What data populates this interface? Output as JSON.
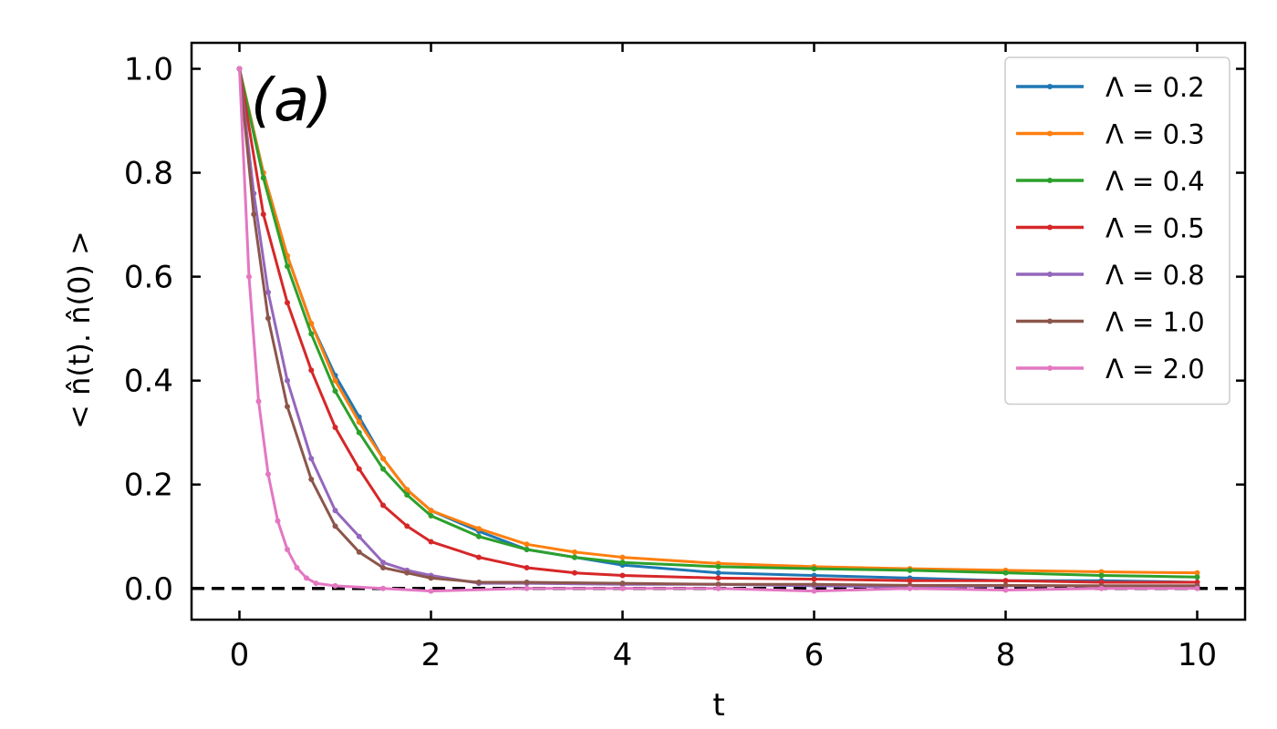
{
  "chart_data": {
    "type": "line",
    "panel_label": "(a)",
    "xlabel": "t",
    "ylabel": "< n̂(t). n̂(0) >",
    "xlim": [
      -0.5,
      10.5
    ],
    "ylim": [
      -0.06,
      1.05
    ],
    "xticks": [
      0,
      2,
      4,
      6,
      8,
      10
    ],
    "xtick_labels": [
      "0",
      "2",
      "4",
      "6",
      "8",
      "10"
    ],
    "yticks": [
      0.0,
      0.2,
      0.4,
      0.6,
      0.8,
      1.0
    ],
    "ytick_labels": [
      "0.0",
      "0.2",
      "0.4",
      "0.6",
      "0.8",
      "1.0"
    ],
    "grid": false,
    "legend_position": "top-right",
    "reference_line": {
      "y": 0,
      "style": "dashed",
      "color": "#000000"
    },
    "series": [
      {
        "name": "Λ = 0.2",
        "color": "#1f77b4",
        "points": [
          [
            0,
            1.0
          ],
          [
            0.25,
            0.8
          ],
          [
            0.5,
            0.64
          ],
          [
            0.75,
            0.51
          ],
          [
            1.0,
            0.41
          ],
          [
            1.25,
            0.33
          ],
          [
            1.5,
            0.25
          ],
          [
            1.75,
            0.19
          ],
          [
            2.0,
            0.15
          ],
          [
            2.5,
            0.11
          ],
          [
            3.0,
            0.075
          ],
          [
            3.5,
            0.06
          ],
          [
            4.0,
            0.045
          ],
          [
            5.0,
            0.03
          ],
          [
            6.0,
            0.025
          ],
          [
            7.0,
            0.02
          ],
          [
            8.0,
            0.015
          ],
          [
            9.0,
            0.015
          ],
          [
            10.0,
            0.012
          ]
        ]
      },
      {
        "name": "Λ = 0.3",
        "color": "#ff7f0e",
        "points": [
          [
            0,
            1.0
          ],
          [
            0.25,
            0.8
          ],
          [
            0.5,
            0.64
          ],
          [
            0.75,
            0.51
          ],
          [
            1.0,
            0.4
          ],
          [
            1.25,
            0.32
          ],
          [
            1.5,
            0.25
          ],
          [
            1.75,
            0.19
          ],
          [
            2.0,
            0.15
          ],
          [
            2.5,
            0.115
          ],
          [
            3.0,
            0.085
          ],
          [
            3.5,
            0.07
          ],
          [
            4.0,
            0.06
          ],
          [
            5.0,
            0.048
          ],
          [
            6.0,
            0.042
          ],
          [
            7.0,
            0.038
          ],
          [
            8.0,
            0.035
          ],
          [
            9.0,
            0.032
          ],
          [
            10.0,
            0.03
          ]
        ]
      },
      {
        "name": "Λ = 0.4",
        "color": "#2ca02c",
        "points": [
          [
            0,
            1.0
          ],
          [
            0.25,
            0.79
          ],
          [
            0.5,
            0.62
          ],
          [
            0.75,
            0.49
          ],
          [
            1.0,
            0.38
          ],
          [
            1.25,
            0.3
          ],
          [
            1.5,
            0.23
          ],
          [
            1.75,
            0.18
          ],
          [
            2.0,
            0.14
          ],
          [
            2.5,
            0.1
          ],
          [
            3.0,
            0.075
          ],
          [
            3.5,
            0.06
          ],
          [
            4.0,
            0.05
          ],
          [
            5.0,
            0.042
          ],
          [
            6.0,
            0.038
          ],
          [
            7.0,
            0.035
          ],
          [
            8.0,
            0.03
          ],
          [
            9.0,
            0.025
          ],
          [
            10.0,
            0.022
          ]
        ]
      },
      {
        "name": "Λ = 0.5",
        "color": "#d62728",
        "points": [
          [
            0,
            1.0
          ],
          [
            0.25,
            0.72
          ],
          [
            0.5,
            0.55
          ],
          [
            0.75,
            0.42
          ],
          [
            1.0,
            0.31
          ],
          [
            1.25,
            0.23
          ],
          [
            1.5,
            0.16
          ],
          [
            1.75,
            0.12
          ],
          [
            2.0,
            0.09
          ],
          [
            2.5,
            0.06
          ],
          [
            3.0,
            0.04
          ],
          [
            3.5,
            0.03
          ],
          [
            4.0,
            0.025
          ],
          [
            5.0,
            0.02
          ],
          [
            6.0,
            0.018
          ],
          [
            7.0,
            0.015
          ],
          [
            8.0,
            0.015
          ],
          [
            9.0,
            0.012
          ],
          [
            10.0,
            0.012
          ]
        ]
      },
      {
        "name": "Λ = 0.8",
        "color": "#9467bd",
        "points": [
          [
            0,
            1.0
          ],
          [
            0.15,
            0.76
          ],
          [
            0.3,
            0.57
          ],
          [
            0.5,
            0.4
          ],
          [
            0.75,
            0.25
          ],
          [
            1.0,
            0.15
          ],
          [
            1.25,
            0.1
          ],
          [
            1.5,
            0.05
          ],
          [
            1.75,
            0.035
          ],
          [
            2.0,
            0.025
          ],
          [
            2.5,
            0.01
          ],
          [
            3.0,
            0.01
          ],
          [
            4.0,
            0.008
          ],
          [
            5.0,
            0.008
          ],
          [
            6.0,
            0.005
          ],
          [
            7.0,
            0.003
          ],
          [
            8.0,
            0.005
          ],
          [
            9.0,
            0.005
          ],
          [
            10.0,
            0.005
          ]
        ]
      },
      {
        "name": "Λ = 1.0",
        "color": "#8c564b",
        "points": [
          [
            0,
            1.0
          ],
          [
            0.15,
            0.72
          ],
          [
            0.3,
            0.52
          ],
          [
            0.5,
            0.35
          ],
          [
            0.75,
            0.21
          ],
          [
            1.0,
            0.12
          ],
          [
            1.25,
            0.07
          ],
          [
            1.5,
            0.04
          ],
          [
            1.75,
            0.03
          ],
          [
            2.0,
            0.02
          ],
          [
            2.5,
            0.012
          ],
          [
            3.0,
            0.012
          ],
          [
            4.0,
            0.01
          ],
          [
            5.0,
            0.008
          ],
          [
            6.0,
            0.008
          ],
          [
            7.0,
            0.006
          ],
          [
            8.0,
            0.006
          ],
          [
            9.0,
            0.005
          ],
          [
            10.0,
            0.005
          ]
        ]
      },
      {
        "name": "Λ = 2.0",
        "color": "#e377c2",
        "points": [
          [
            0,
            1.0
          ],
          [
            0.1,
            0.6
          ],
          [
            0.2,
            0.36
          ],
          [
            0.3,
            0.22
          ],
          [
            0.4,
            0.13
          ],
          [
            0.5,
            0.075
          ],
          [
            0.6,
            0.04
          ],
          [
            0.7,
            0.02
          ],
          [
            0.8,
            0.01
          ],
          [
            1.0,
            0.005
          ],
          [
            1.5,
            0.0
          ],
          [
            2.0,
            -0.005
          ],
          [
            3.0,
            0.0
          ],
          [
            4.0,
            0.0
          ],
          [
            5.0,
            0.0
          ],
          [
            6.0,
            -0.005
          ],
          [
            7.0,
            0.0
          ],
          [
            8.0,
            -0.003
          ],
          [
            9.0,
            0.0
          ],
          [
            10.0,
            0.0
          ]
        ]
      }
    ]
  }
}
